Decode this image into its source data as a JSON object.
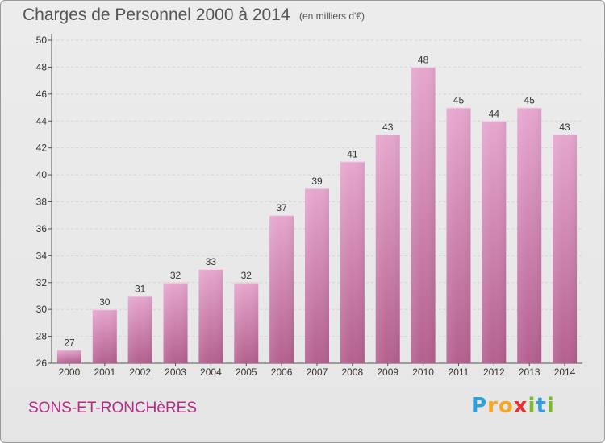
{
  "chart_data": {
    "type": "bar",
    "title": "Charges de Personnel 2000 à 2014",
    "subtitle": "(en milliers d'€)",
    "categories": [
      "2000",
      "2001",
      "2002",
      "2003",
      "2004",
      "2005",
      "2006",
      "2007",
      "2008",
      "2009",
      "2010",
      "2011",
      "2012",
      "2013",
      "2014"
    ],
    "values": [
      27,
      30,
      31,
      32,
      33,
      32,
      37,
      39,
      41,
      43,
      48,
      45,
      44,
      45,
      43
    ],
    "ylim": [
      26,
      50
    ],
    "yticks": [
      26,
      28,
      30,
      32,
      34,
      36,
      38,
      40,
      42,
      44,
      46,
      48,
      50
    ],
    "grid": true,
    "bar_color": "#cc77aa"
  },
  "commune": "SONS-ET-RONCHèRES",
  "logo": {
    "letters": [
      "P",
      "r",
      "o",
      "x",
      "i",
      "t",
      "i"
    ],
    "colors": [
      "#2e9fd9",
      "#f5a623",
      "#f5a623",
      "#e8312f",
      "#7cb82f",
      "#2e9fd9",
      "#7cb82f"
    ]
  }
}
